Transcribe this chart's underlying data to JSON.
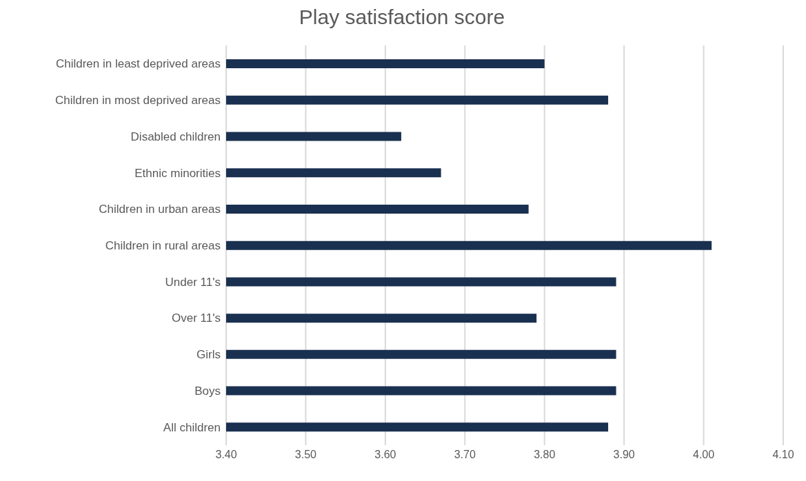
{
  "chart_data": {
    "type": "bar",
    "orientation": "horizontal",
    "title": "Play satisfaction score",
    "categories": [
      "Children in least deprived areas",
      "Children in most deprived areas",
      "Disabled children",
      "Ethnic minorities",
      "Children in urban areas",
      "Children in rural areas",
      "Under 11's",
      "Over 11's",
      "Girls",
      "Boys",
      "All children"
    ],
    "values": [
      3.8,
      3.88,
      3.62,
      3.67,
      3.78,
      4.01,
      3.89,
      3.79,
      3.89,
      3.89,
      3.88
    ],
    "color": "#1a3050",
    "xlim": [
      3.4,
      4.1
    ],
    "xticks": [
      {
        "value": 3.4,
        "label": "3.40"
      },
      {
        "value": 3.5,
        "label": "3.50"
      },
      {
        "value": 3.6,
        "label": "3.60"
      },
      {
        "value": 3.7,
        "label": "3.70"
      },
      {
        "value": 3.8,
        "label": "3.80"
      },
      {
        "value": 3.9,
        "label": "3.90"
      },
      {
        "value": 4.0,
        "label": "4.00"
      },
      {
        "value": 4.1,
        "label": "4.10"
      }
    ],
    "grid": "x",
    "legend": false
  }
}
